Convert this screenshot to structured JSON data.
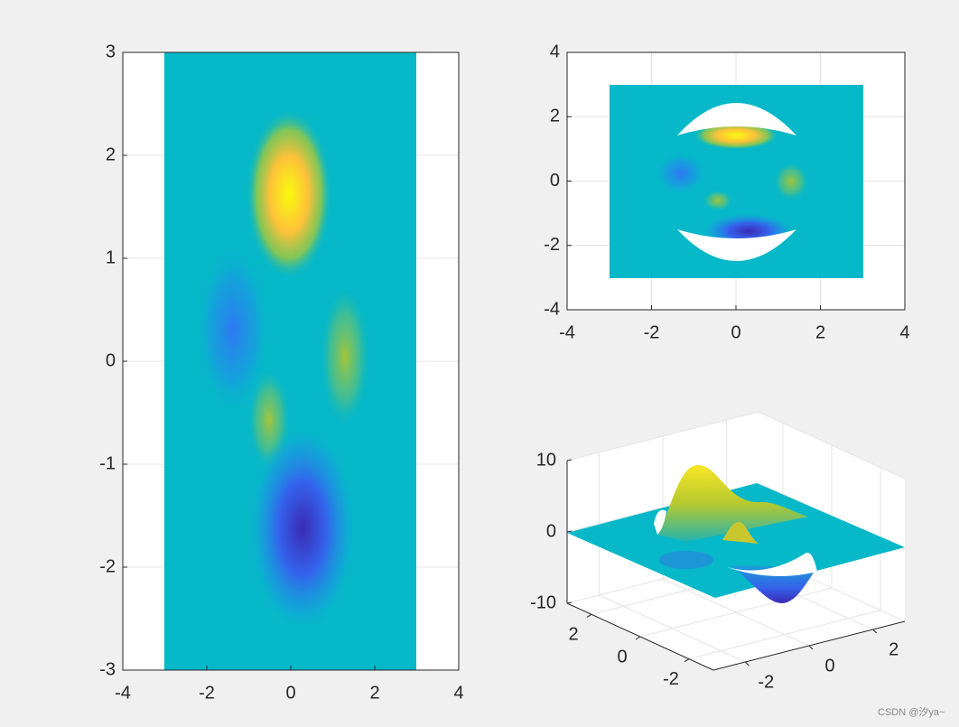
{
  "chart_data": [
    {
      "type": "surface",
      "view": "top",
      "xlim": [
        -4,
        4
      ],
      "xticks": [
        -4,
        -2,
        0,
        2,
        4
      ],
      "ylim": [
        -3,
        3
      ],
      "yticks": [
        -3,
        -2,
        -1,
        0,
        1,
        2,
        3
      ],
      "grid": true
    },
    {
      "type": "surface",
      "view": "top",
      "xlim": [
        -4,
        4
      ],
      "xticks": [
        -4,
        -2,
        0,
        2,
        4
      ],
      "ylim": [
        -4,
        4
      ],
      "yticks": [
        -4,
        -2,
        0,
        2,
        4
      ],
      "grid": true
    },
    {
      "type": "surface",
      "view": "3d",
      "xlim": [
        -3,
        3
      ],
      "xticks": [
        -2,
        0,
        2
      ],
      "ylim": [
        -3,
        3
      ],
      "yticks": [
        -2,
        0,
        2
      ],
      "zlim": [
        -10,
        10
      ],
      "zticks": [
        -10,
        0,
        10
      ],
      "grid": true
    }
  ],
  "watermark": "CSDN @汐ya~"
}
